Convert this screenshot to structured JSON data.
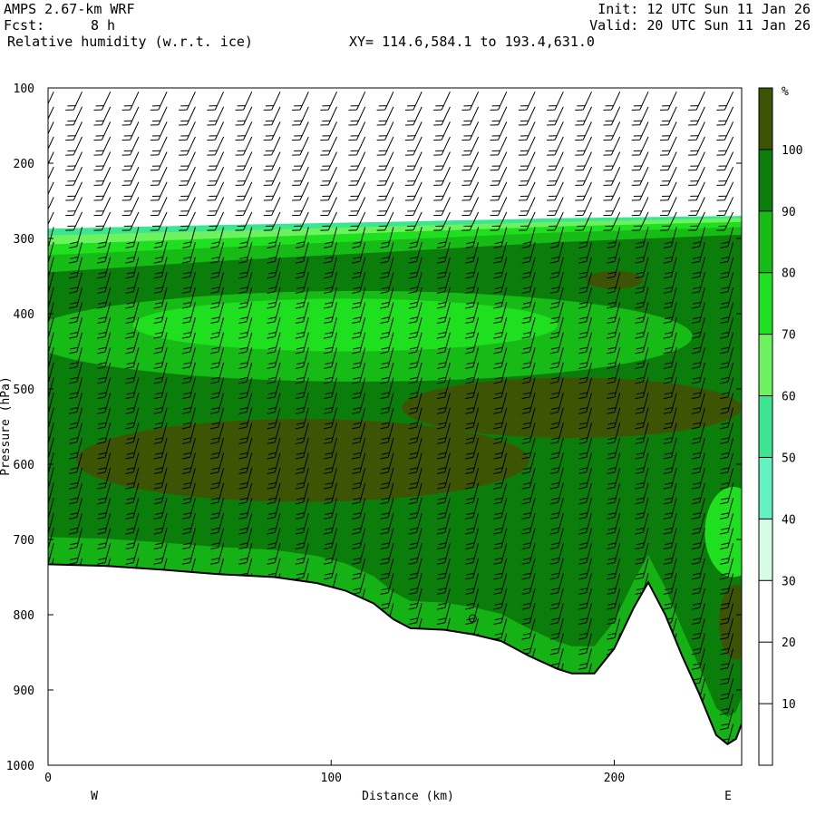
{
  "header": {
    "model": "AMPS 2.67-km WRF",
    "fcst_label": "Fcst:",
    "fcst_value": "8 h",
    "variable": "Relative humidity (w.r.t. ice)",
    "xy_range": "XY= 114.6,584.1 to 193.4,631.0",
    "init": "Init: 12 UTC Sun 11 Jan 26",
    "valid": "Valid: 20 UTC Sun 11 Jan 26"
  },
  "chart_data": {
    "type": "contour-cross-section",
    "xlabel": "Distance (km)",
    "ylabel": "Pressure (hPa)",
    "xlim": [
      0,
      245
    ],
    "ylim": [
      1000,
      100
    ],
    "x_ticks": [
      0,
      100,
      200
    ],
    "y_ticks": [
      100,
      200,
      300,
      400,
      500,
      600,
      700,
      800,
      900,
      1000
    ],
    "endpoint_labels": {
      "left": "W",
      "right": "E"
    },
    "colorbar": {
      "unit": "%",
      "levels": [
        10,
        20,
        30,
        40,
        50,
        60,
        70,
        80,
        90,
        100
      ],
      "colors": [
        "#ffffff",
        "#ffffff",
        "#ffffff",
        "#d6fce8",
        "#63f2c1",
        "#3ce690",
        "#6cf25e",
        "#1ee01e",
        "#16bb16",
        "#0b7d0b",
        "#3e5405"
      ]
    },
    "terrain_pressure": [
      [
        0,
        733
      ],
      [
        20,
        735
      ],
      [
        40,
        740
      ],
      [
        60,
        746
      ],
      [
        80,
        750
      ],
      [
        95,
        758
      ],
      [
        105,
        768
      ],
      [
        115,
        785
      ],
      [
        122,
        806
      ],
      [
        128,
        818
      ],
      [
        140,
        820
      ],
      [
        150,
        826
      ],
      [
        160,
        835
      ],
      [
        170,
        855
      ],
      [
        180,
        872
      ],
      [
        185,
        878
      ],
      [
        193,
        878
      ],
      [
        200,
        845
      ],
      [
        207,
        790
      ],
      [
        212,
        757
      ],
      [
        218,
        800
      ],
      [
        224,
        855
      ],
      [
        230,
        905
      ],
      [
        236,
        960
      ],
      [
        240,
        972
      ],
      [
        243,
        965
      ],
      [
        245,
        945
      ]
    ],
    "contour_bands": [
      {
        "level": 30,
        "points": [
          [
            0,
            287
          ],
          [
            60,
            282
          ],
          [
            120,
            278
          ],
          [
            180,
            273
          ],
          [
            245,
            270
          ]
        ]
      },
      {
        "level": 40,
        "points": [
          [
            0,
            296
          ],
          [
            60,
            290
          ],
          [
            120,
            284
          ],
          [
            180,
            278
          ],
          [
            245,
            273
          ]
        ]
      },
      {
        "level": 50,
        "points": [
          [
            0,
            308
          ],
          [
            60,
            300
          ],
          [
            120,
            292
          ],
          [
            180,
            284
          ],
          [
            245,
            278
          ]
        ]
      },
      {
        "level": 60,
        "points": [
          [
            0,
            322
          ],
          [
            60,
            312
          ],
          [
            120,
            302
          ],
          [
            180,
            292
          ],
          [
            245,
            285
          ]
        ]
      },
      {
        "level": 70,
        "points": [
          [
            0,
            345
          ],
          [
            60,
            330
          ],
          [
            120,
            318
          ],
          [
            180,
            305
          ],
          [
            245,
            295
          ]
        ]
      }
    ],
    "moist_cores": [
      {
        "level": 100,
        "center": [
          90,
          595
        ],
        "radius_km": 80,
        "radius_hpa": 55
      },
      {
        "level": 100,
        "center": [
          185,
          525
        ],
        "radius_km": 60,
        "radius_hpa": 40
      },
      {
        "level": 100,
        "center": [
          200,
          355
        ],
        "radius_km": 10,
        "radius_hpa": 12
      },
      {
        "level": 100,
        "center": [
          243,
          810
        ],
        "radius_km": 6,
        "radius_hpa": 50
      }
    ],
    "dry_cores": [
      {
        "level": 70,
        "center": [
          105,
          415
        ],
        "radius_km": 75,
        "radius_hpa": 35
      },
      {
        "level": 70,
        "center": [
          242,
          690
        ],
        "radius_km": 10,
        "radius_hpa": 60
      }
    ],
    "annotation_marker": {
      "x": 150,
      "p": 805
    }
  }
}
